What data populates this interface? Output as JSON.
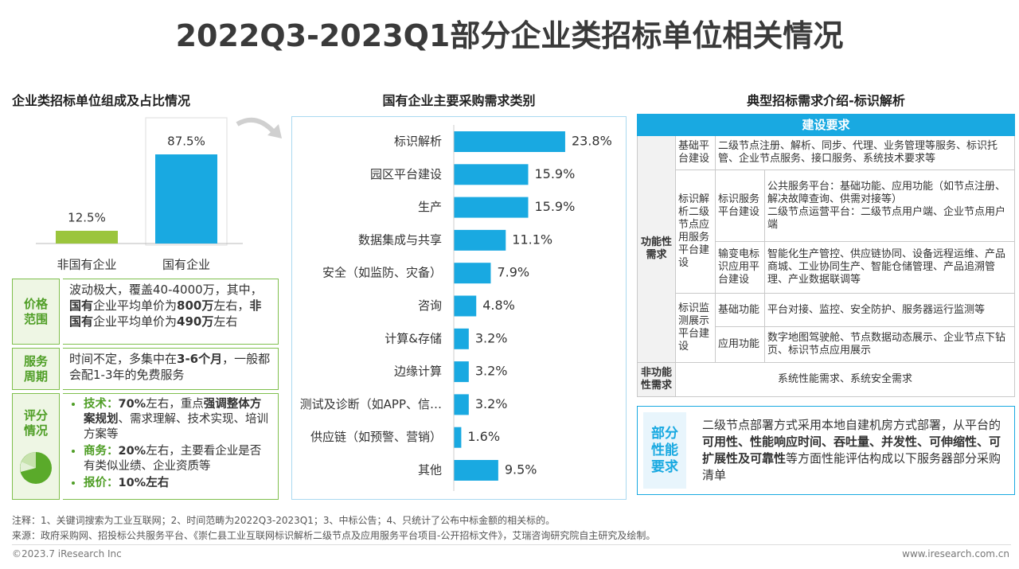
{
  "title": "2022Q3-2023Q1部分企业类招标单位相关情况",
  "chart_data": [
    {
      "type": "bar",
      "title": "企业类招标单位组成及占比情况",
      "categories": [
        "非国有企业",
        "国有企业"
      ],
      "values": [
        12.5,
        87.5
      ],
      "value_labels": [
        "12.5%",
        "87.5%"
      ],
      "colors": [
        "#9bc53d",
        "#19a9e1"
      ]
    },
    {
      "type": "bar",
      "horizontal": true,
      "title": "国有企业主要采购需求类别",
      "categories": [
        "标识解析",
        "园区平台建设",
        "生产",
        "数据集成与共享",
        "安全（如监防、灾备）",
        "咨询",
        "计算&存储",
        "边缘计算",
        "测试及诊断（如APP、信…",
        "供应链（如预警、营销）",
        "其他"
      ],
      "values": [
        23.8,
        15.9,
        15.9,
        11.1,
        7.9,
        4.8,
        3.2,
        3.2,
        3.2,
        1.6,
        9.5
      ],
      "value_labels": [
        "23.8%",
        "15.9%",
        "15.9%",
        "11.1%",
        "7.9%",
        "4.8%",
        "3.2%",
        "3.2%",
        "3.2%",
        "1.6%",
        "9.5%"
      ],
      "color": "#19a9e1"
    }
  ],
  "price": {
    "label": "价格范围",
    "runs": [
      {
        "text": "波动极大，覆盖40-4000万，其中，"
      },
      {
        "text": "国有",
        "bold": true
      },
      {
        "text": "企业平均单价为"
      },
      {
        "text": "800万",
        "bold": true
      },
      {
        "text": "左右，"
      },
      {
        "text": "非国有",
        "bold": true
      },
      {
        "text": "企业平均单价为"
      },
      {
        "text": "490万",
        "bold": true
      },
      {
        "text": "左右"
      }
    ]
  },
  "period": {
    "label": "服务周期",
    "runs": [
      {
        "text": "时间不定，多集中在"
      },
      {
        "text": "3-6个月",
        "bold": true
      },
      {
        "text": "，一般都会配1-3年的免费服务"
      }
    ]
  },
  "scoring": {
    "label": "评分情况",
    "items": [
      {
        "label": "技术：",
        "runs": [
          {
            "text": "70%",
            "bold": true
          },
          {
            "text": "左右，重点"
          },
          {
            "text": "强调整体方案规划",
            "bold": true
          },
          {
            "text": "、需求理解、技术实现、培训方案等"
          }
        ]
      },
      {
        "label": "商务：",
        "runs": [
          {
            "text": "20%",
            "bold": true
          },
          {
            "text": "左右，主要看企业是否有类似业绩、企业资质等"
          }
        ]
      },
      {
        "label": "报价：",
        "runs": [
          {
            "text": "10%左右",
            "bold": true
          }
        ]
      }
    ]
  },
  "requirements": {
    "title": "典型招标需求介绍-标识解析",
    "header": "建设要求",
    "functional": {
      "label": "功能性需求",
      "groups": [
        {
          "name": "基础平台建设",
          "items": [
            {
              "lines": [
                "二级节点注册、解析、同步、代理、业务管理等服务、标识托管、企业节点服务、接口服务、系统技术要求等"
              ]
            }
          ]
        },
        {
          "name": "标识解析二级节点应用服务平台建设",
          "items": [
            {
              "name": "标识服务平台建设",
              "lines": [
                "公共服务平台：基础功能、应用功能（如节点注册、解决故障查询、供需对接等）",
                "二级节点运营平台：二级节点用户端、企业节点用户端"
              ]
            },
            {
              "name": "输变电标识应用平台建设",
              "lines": [
                "智能化生产管控、供应链协同、设备远程运维、产品商城、工业协同生产、智能仓储管理、产品追溯管理、产业数据联调等"
              ]
            }
          ]
        },
        {
          "name": "标识监测展示平台建设",
          "items": [
            {
              "name": "基础功能",
              "lines": [
                "平台对接、监控、安全防护、服务器运行监测等"
              ]
            },
            {
              "name": "应用功能",
              "lines": [
                "数字地图驾驶舱、节点数据动态展示、企业节点下钻页、标识节点应用展示"
              ]
            }
          ]
        }
      ]
    },
    "non_functional": {
      "label": "非功能性需求",
      "text": "系统性能需求、系统安全需求"
    },
    "performance": {
      "label": "部分性能要求",
      "runs": [
        {
          "text": "二级节点部署方式采用本地自建机房方式部署，从平台的"
        },
        {
          "text": "可用性、性能响应时间、吞吐量、并发性、可伸缩性、可扩展性及可靠性",
          "bold": true
        },
        {
          "text": "等方面性能评估构成以下服务器部分采购清单"
        }
      ]
    }
  },
  "footer": {
    "notes": "注释：1、关键词搜索为工业互联网；2、时间范畴为2022Q3-2023Q1；3、中标公告；4、只统计了公布中标金额的相关标的。",
    "source": "来源：政府采购网、招投标公共服务平台、《崇仁县工业互联网标识解析二级节点及应用服务平台项目-公开招标文件》，艾瑞咨询研究院自主研究及绘制。",
    "copyright": "©2023.7 iResearch Inc",
    "website": "www.iresearch.com.cn"
  }
}
